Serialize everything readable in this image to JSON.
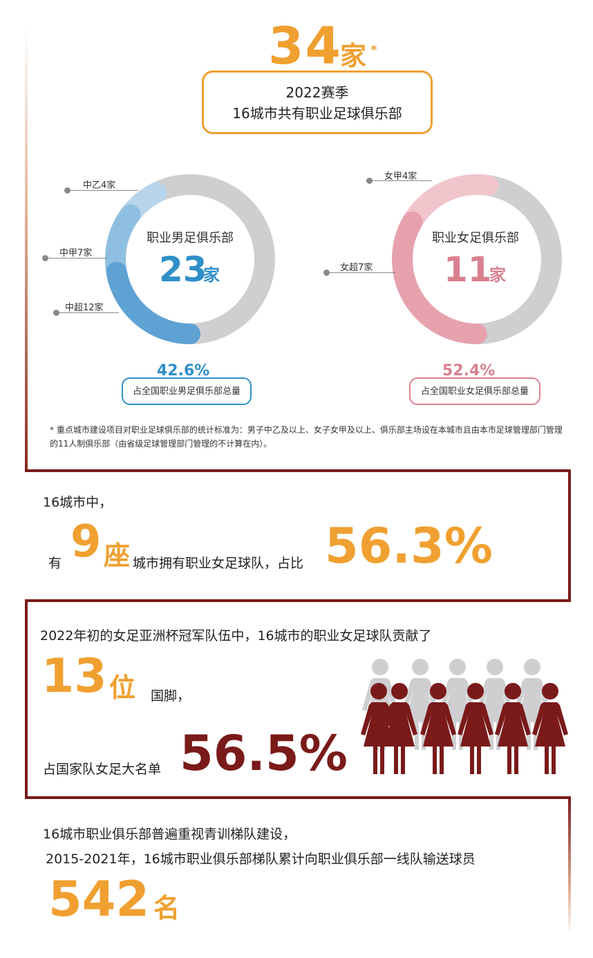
{
  "headline": {
    "number": "34",
    "unit": "家",
    "star": "*",
    "line1": "2022赛季",
    "line2": "16城市共有职业足球俱乐部"
  },
  "men": {
    "title": "职业男足俱乐部",
    "number": "23",
    "unit": "家",
    "segments": [
      {
        "label": "中乙4家",
        "value": 4,
        "color": "#b8d4ea"
      },
      {
        "label": "中甲7家",
        "value": 7,
        "color": "#8fbfe0"
      },
      {
        "label": "中超12家",
        "value": 12,
        "color": "#5ea2d4"
      }
    ],
    "remainder_color": "#cfcfd1",
    "percent": "42.6%",
    "percent_value": 42.6,
    "caption": "占全国职业男足俱乐部总量"
  },
  "women": {
    "title": "职业女足俱乐部",
    "number": "11",
    "unit": "家",
    "segments": [
      {
        "label": "女甲4家",
        "value": 4,
        "color": "#f1c5cc"
      },
      {
        "label": "女超7家",
        "value": 7,
        "color": "#e6a1ad"
      }
    ],
    "remainder_color": "#cfcfd1",
    "percent": "52.4%",
    "percent_value": 52.4,
    "caption": "占全国职业女足俱乐部总量"
  },
  "footnote": "* 重点城市建设项目对职业足球俱乐部的统计标准为：男子中乙及以上、女子女甲及以上、俱乐部主场设在本城市且由本市足球管理部门管理的11人制俱乐部（由省级足球管理部门管理的不计算在内）。",
  "section2": {
    "line1": "16城市中，",
    "pre": "有",
    "num": "9",
    "unit": "座",
    "mid": "城市拥有职业女足球队，占比",
    "pct": "56.3%"
  },
  "section3": {
    "line1": "2022年初的女足亚洲杯冠军队伍中，16城市的职业女足球队贡献了",
    "num": "13",
    "unit": "位",
    "after": "国脚，",
    "pre2": "占国家队女足大名单",
    "pct": "56.5%"
  },
  "section4": {
    "line1": "16城市职业俱乐部普遍重视青训梯队建设，",
    "line2": "2015-2021年，16城市职业俱乐部梯队累计向职业俱乐部一线队输送球员",
    "num": "542",
    "unit": "名"
  },
  "colors": {
    "orange": "#f0a030",
    "blue": "#2f8fc8",
    "pink": "#d9808f",
    "maroon": "#7a1a1a",
    "grey": "#cfcfd1"
  }
}
